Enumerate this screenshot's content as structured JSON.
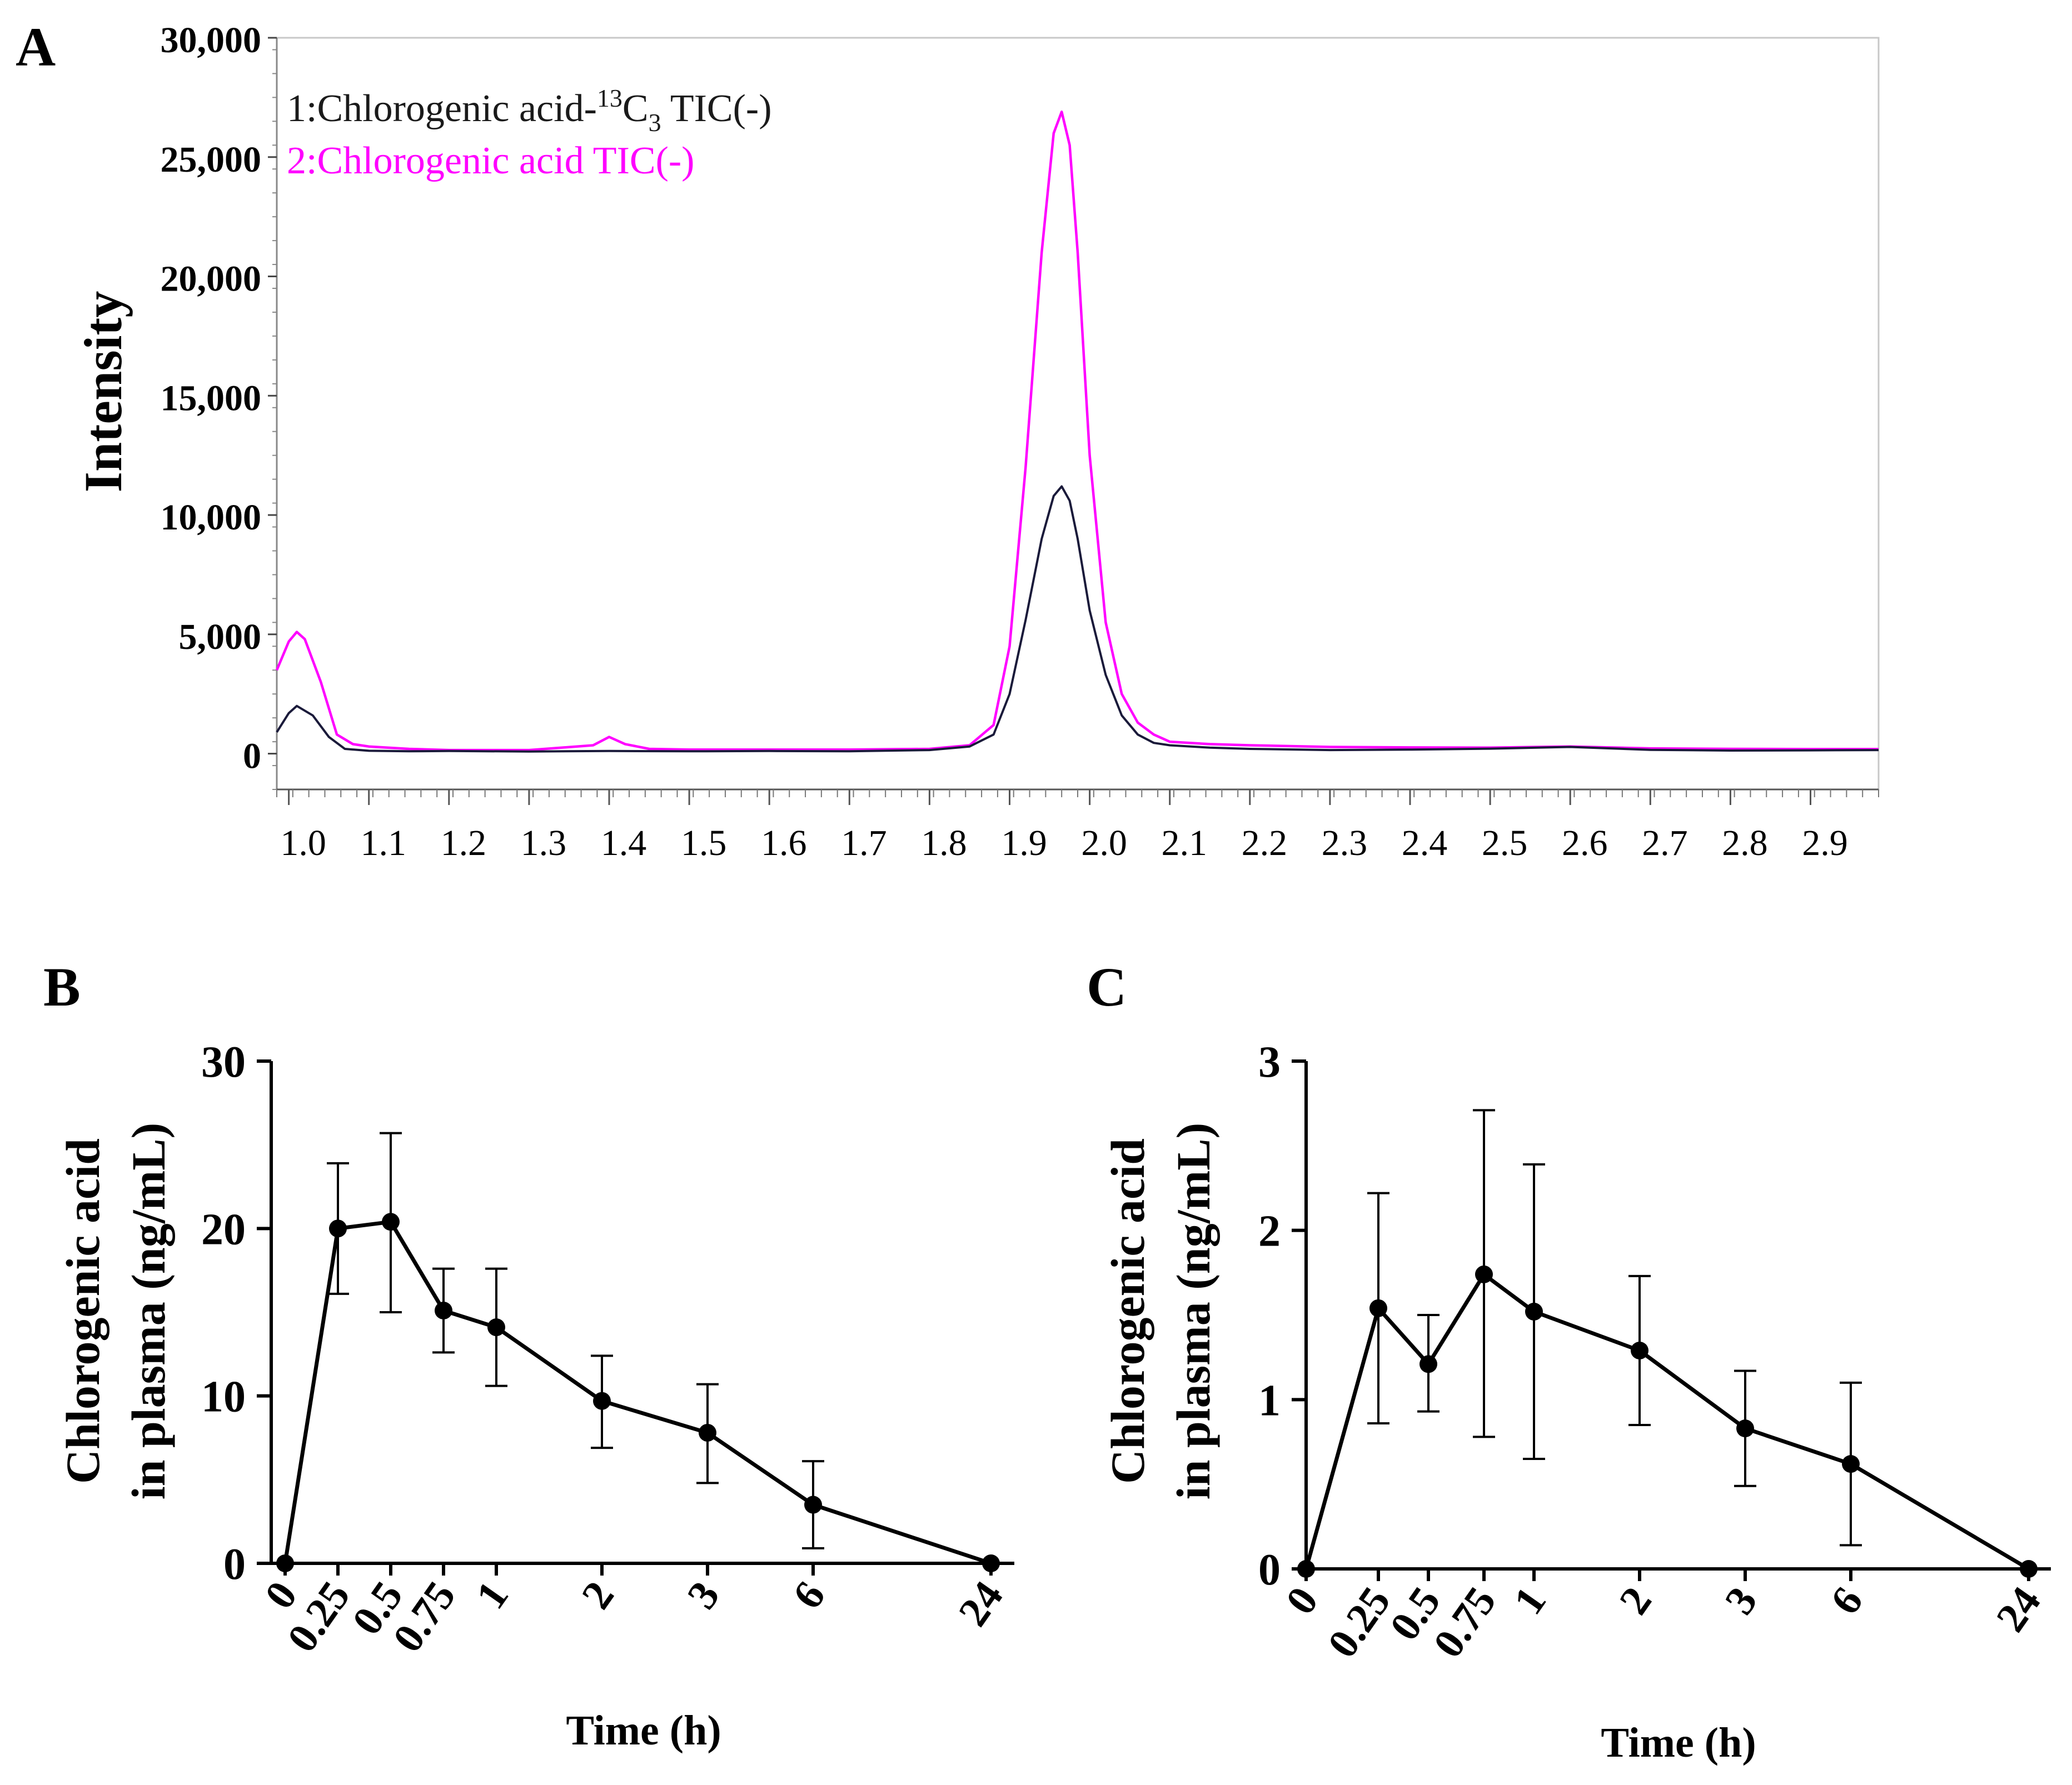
{
  "colors": {
    "ink": "#000000",
    "chlorogenic": "#ff00ff",
    "labeled": "#1a1a3a"
  },
  "chart_data": [
    {
      "panel": "A",
      "type": "line",
      "title": "",
      "ylabel": "Intensity",
      "xlabel": "",
      "xlim": [
        0.985,
        2.985
      ],
      "ylim": [
        -1500,
        30000
      ],
      "xticks": [
        "1.0",
        "1.1",
        "1.2",
        "1.3",
        "1.4",
        "1.5",
        "1.6",
        "1.7",
        "1.8",
        "1.9",
        "2.0",
        "2.1",
        "2.2",
        "2.3",
        "2.4",
        "2.5",
        "2.6",
        "2.7",
        "2.8",
        "2.9"
      ],
      "yticks": [
        "0",
        "5,000",
        "10,000",
        "15,000",
        "20,000",
        "25,000",
        "30,000"
      ],
      "legend": {
        "position": "top-left",
        "entries": [
          {
            "prefix": "1:Chlorogenic acid-",
            "sup": "13",
            "base": "C",
            "sub": "3",
            "suffix": " TIC(-)"
          },
          {
            "label": "2:Chlorogenic acid TIC(-)"
          }
        ]
      },
      "series": [
        {
          "name": "1:Chlorogenic acid-13C3 TIC(-)",
          "color": "#1a1a3a",
          "x": [
            0.985,
            1.0,
            1.01,
            1.03,
            1.05,
            1.07,
            1.1,
            1.15,
            1.2,
            1.3,
            1.4,
            1.5,
            1.6,
            1.7,
            1.8,
            1.85,
            1.88,
            1.9,
            1.92,
            1.94,
            1.955,
            1.965,
            1.975,
            1.985,
            2.0,
            2.02,
            2.04,
            2.06,
            2.08,
            2.1,
            2.15,
            2.2,
            2.3,
            2.4,
            2.5,
            2.6,
            2.7,
            2.8,
            2.9,
            2.985
          ],
          "y": [
            900,
            1700,
            2000,
            1600,
            700,
            200,
            120,
            100,
            110,
            90,
            110,
            100,
            110,
            100,
            150,
            300,
            800,
            2500,
            5600,
            9000,
            10800,
            11200,
            10600,
            9000,
            6000,
            3300,
            1600,
            800,
            450,
            350,
            250,
            200,
            150,
            170,
            210,
            280,
            160,
            130,
            140,
            150
          ]
        },
        {
          "name": "2:Chlorogenic acid TIC(-)",
          "color": "#ff00ff",
          "x": [
            0.985,
            1.0,
            1.01,
            1.02,
            1.04,
            1.06,
            1.08,
            1.1,
            1.15,
            1.2,
            1.3,
            1.38,
            1.4,
            1.42,
            1.45,
            1.5,
            1.6,
            1.7,
            1.8,
            1.85,
            1.88,
            1.9,
            1.92,
            1.94,
            1.955,
            1.965,
            1.975,
            1.985,
            2.0,
            2.02,
            2.04,
            2.06,
            2.08,
            2.1,
            2.15,
            2.2,
            2.3,
            2.4,
            2.5,
            2.6,
            2.7,
            2.8,
            2.9,
            2.985
          ],
          "y": [
            3500,
            4700,
            5100,
            4800,
            3000,
            800,
            400,
            300,
            200,
            150,
            150,
            350,
            700,
            400,
            200,
            170,
            170,
            170,
            200,
            350,
            1200,
            4500,
            12000,
            21000,
            26000,
            26900,
            25500,
            21000,
            12500,
            5500,
            2500,
            1300,
            800,
            500,
            400,
            350,
            280,
            260,
            250,
            300,
            220,
            200,
            190,
            190
          ]
        }
      ]
    },
    {
      "panel": "B",
      "type": "line",
      "xlabel": "Time (h)",
      "ylabel": [
        "Chlorogenic acid",
        "in plasma (ng/mL)"
      ],
      "ylim": [
        0,
        30
      ],
      "yticks": [
        "0",
        "10",
        "20",
        "30"
      ],
      "categories": [
        "0",
        "0.25",
        "0.5",
        "0.75",
        "1",
        "2",
        "3",
        "6",
        "24"
      ],
      "values": [
        0,
        20.0,
        20.4,
        15.1,
        14.1,
        9.7,
        7.8,
        3.5,
        0
      ],
      "err_upper": [
        0,
        23.9,
        25.7,
        17.6,
        17.6,
        12.4,
        10.7,
        6.1,
        0
      ],
      "err_lower": [
        0,
        16.1,
        15.0,
        12.6,
        10.6,
        6.9,
        4.8,
        0.9,
        0
      ]
    },
    {
      "panel": "C",
      "type": "line",
      "xlabel": "Time (h)",
      "ylabel": [
        "Chlorogenic acid",
        "in plasma (ng/mL)"
      ],
      "ylim": [
        0,
        3
      ],
      "yticks": [
        "0",
        "1",
        "2",
        "3"
      ],
      "categories": [
        "0",
        "0.25",
        "0.5",
        "0.75",
        "1",
        "2",
        "3",
        "6",
        "24"
      ],
      "values": [
        0,
        1.54,
        1.21,
        1.74,
        1.52,
        1.29,
        0.83,
        0.62,
        0
      ],
      "err_upper": [
        0,
        2.22,
        1.5,
        2.71,
        2.39,
        1.73,
        1.17,
        1.1,
        0
      ],
      "err_lower": [
        0,
        0.86,
        0.93,
        0.78,
        0.65,
        0.85,
        0.49,
        0.14,
        0
      ]
    }
  ]
}
